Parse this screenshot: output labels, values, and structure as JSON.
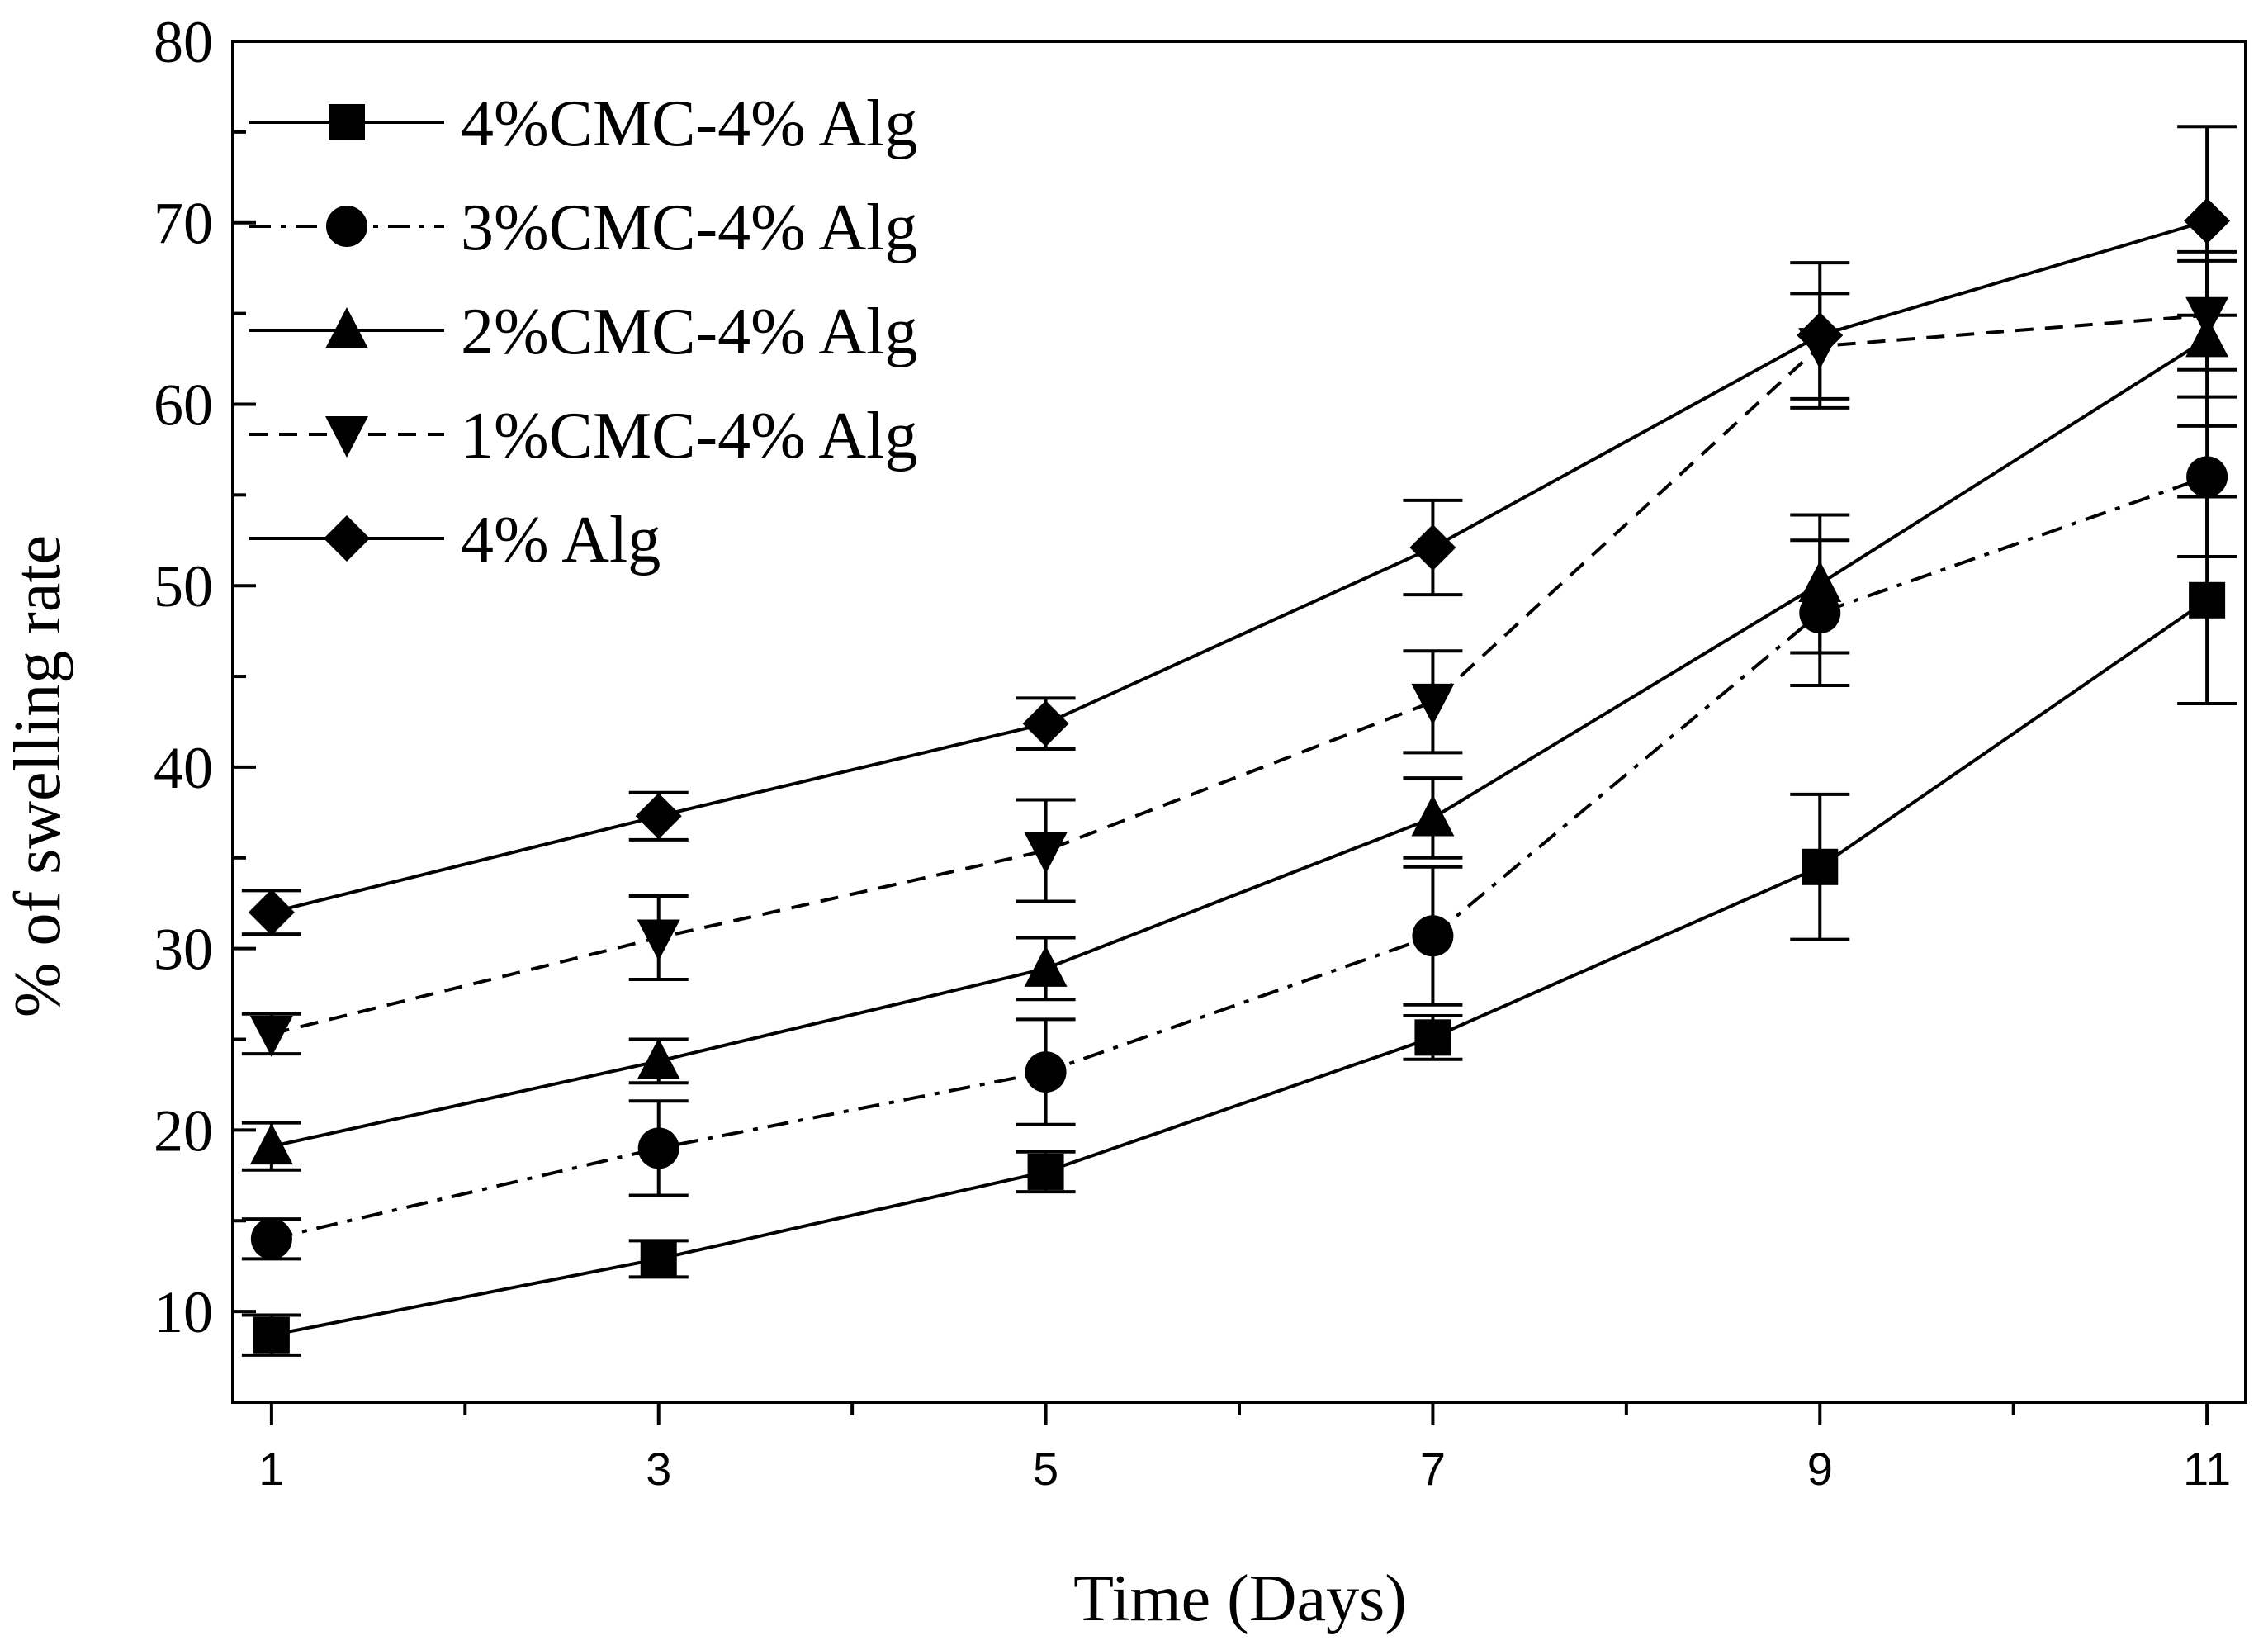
{
  "chart_data": {
    "type": "line",
    "title": "",
    "xlabel": "Time (Days)",
    "ylabel": "% of swelling rate",
    "x": [
      1,
      3,
      5,
      7,
      9,
      11
    ],
    "xlim": [
      0.8,
      11.2
    ],
    "ylim": [
      5,
      80
    ],
    "xticks": [
      1,
      3,
      5,
      7,
      9,
      11
    ],
    "xminor": [
      2,
      4,
      6,
      8,
      10
    ],
    "yticks": [
      10,
      20,
      30,
      40,
      50,
      60,
      70,
      80
    ],
    "yminor": [
      15,
      25,
      35,
      45,
      55,
      65,
      75
    ],
    "legend_position": "top-left",
    "grid": false,
    "series": [
      {
        "name": "4%CMC-4% Alg",
        "marker": "square",
        "linestyle": "solid",
        "values": [
          8.7,
          12.9,
          17.7,
          25.1,
          34.5,
          49.2
        ],
        "errors": [
          1.1,
          1.0,
          1.1,
          1.2,
          4.0,
          5.7
        ]
      },
      {
        "name": "3%CMC-4% Alg",
        "marker": "circle",
        "linestyle": "dashdot",
        "values": [
          14.0,
          19.0,
          23.2,
          30.7,
          48.5,
          56.0
        ],
        "errors": [
          1.1,
          2.6,
          2.9,
          3.8,
          4.0,
          4.4
        ]
      },
      {
        "name": "2%CMC-4% Alg",
        "marker": "triangle-up",
        "linestyle": "solid",
        "values": [
          19.1,
          23.8,
          28.9,
          37.2,
          50.1,
          63.6
        ],
        "errors": [
          1.3,
          1.2,
          1.7,
          2.2,
          3.8,
          4.8
        ]
      },
      {
        "name": "1%CMC-4% Alg",
        "marker": "triangle-down",
        "linestyle": "dashed",
        "values": [
          25.3,
          30.6,
          35.4,
          43.6,
          63.2,
          64.9
        ],
        "errors": [
          1.1,
          2.3,
          2.8,
          2.8,
          2.9,
          3.0
        ]
      },
      {
        "name": "4% Alg",
        "marker": "diamond",
        "linestyle": "solid",
        "values": [
          32.0,
          37.3,
          42.4,
          52.1,
          63.8,
          70.1
        ],
        "errors": [
          1.2,
          1.3,
          1.4,
          2.6,
          4.0,
          5.2
        ]
      }
    ]
  }
}
